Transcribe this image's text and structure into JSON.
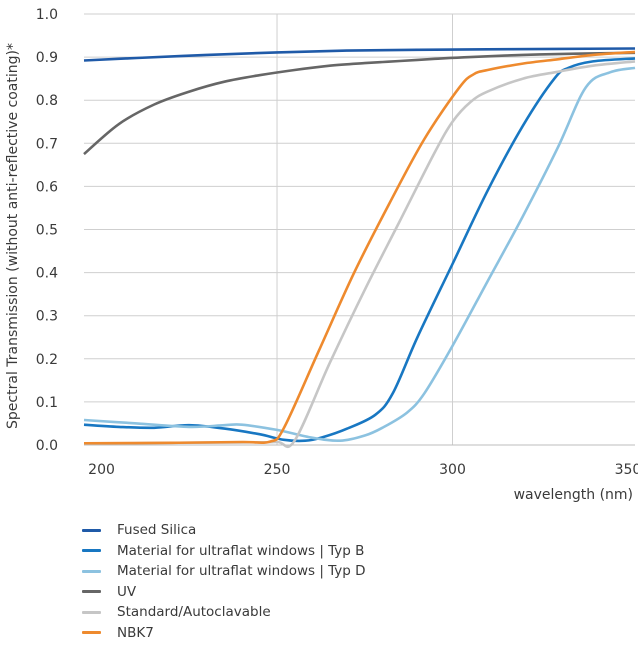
{
  "chart_data": {
    "type": "line",
    "ylabel": "Spectral Transmission (without anti-reflective coating)*",
    "xlabel": "wavelength (nm)",
    "xlim": [
      195,
      352
    ],
    "ylim": [
      0,
      1.0
    ],
    "xticks": [
      200,
      250,
      300,
      350
    ],
    "yticks": [
      0.0,
      0.1,
      0.2,
      0.3,
      0.4,
      0.5,
      0.6,
      0.7,
      0.8,
      0.9,
      1.0
    ],
    "ytick_labels": [
      "0.0",
      "0.1",
      "0.2",
      "0.3",
      "0.4",
      "0.5",
      "0.6",
      "0.7",
      "0.8",
      "0.9",
      "1.0"
    ],
    "grid": "vertical lines at 250 and 300, horizontal lines at each y tick",
    "legend_position": "bottom",
    "series": [
      {
        "name": "Fused Silica",
        "color": "#1f5aa8",
        "x": [
          195,
          210,
          230,
          250,
          270,
          290,
          310,
          330,
          352
        ],
        "y": [
          0.892,
          0.898,
          0.905,
          0.911,
          0.915,
          0.917,
          0.918,
          0.919,
          0.92
        ]
      },
      {
        "name": "Material for ultraflat windows | Typ B",
        "color": "#1877c2",
        "x": [
          195,
          205,
          215,
          225,
          235,
          245,
          252,
          258,
          263,
          270,
          278,
          283,
          290,
          300,
          310,
          320,
          329,
          333,
          340,
          352
        ],
        "y": [
          0.047,
          0.042,
          0.04,
          0.046,
          0.038,
          0.025,
          0.012,
          0.01,
          0.018,
          0.038,
          0.07,
          0.12,
          0.25,
          0.42,
          0.59,
          0.74,
          0.85,
          0.875,
          0.89,
          0.897
        ]
      },
      {
        "name": "Material for ultraflat windows | Typ D",
        "color": "#8cc2e0",
        "x": [
          195,
          210,
          225,
          235,
          240,
          250,
          260,
          268,
          275,
          280,
          287,
          292,
          300,
          310,
          320,
          330,
          338,
          345,
          352
        ],
        "y": [
          0.058,
          0.05,
          0.042,
          0.046,
          0.047,
          0.035,
          0.017,
          0.01,
          0.022,
          0.04,
          0.075,
          0.12,
          0.23,
          0.38,
          0.53,
          0.69,
          0.83,
          0.865,
          0.875
        ]
      },
      {
        "name": "UV",
        "color": "#666666",
        "x": [
          195,
          205,
          215,
          225,
          235,
          245,
          255,
          265,
          275,
          285,
          295,
          305,
          320,
          335,
          352
        ],
        "y": [
          0.675,
          0.745,
          0.79,
          0.82,
          0.843,
          0.858,
          0.87,
          0.88,
          0.886,
          0.891,
          0.896,
          0.9,
          0.905,
          0.908,
          0.91
        ]
      },
      {
        "name": "Standard/Autoclavable",
        "color": "#c6c6c6",
        "x": [
          195,
          220,
          240,
          250,
          255,
          265,
          275,
          285,
          295,
          300,
          305,
          310,
          320,
          330,
          340,
          352
        ],
        "y": [
          0.003,
          0.005,
          0.006,
          0.007,
          0.01,
          0.19,
          0.36,
          0.52,
          0.68,
          0.75,
          0.795,
          0.82,
          0.85,
          0.866,
          0.88,
          0.89
        ]
      },
      {
        "name": "NBK7",
        "color": "#ee8a2e",
        "x": [
          195,
          220,
          240,
          248,
          252,
          262,
          272,
          282,
          292,
          302,
          306,
          310,
          320,
          330,
          340,
          352
        ],
        "y": [
          0.004,
          0.005,
          0.007,
          0.008,
          0.04,
          0.22,
          0.4,
          0.56,
          0.71,
          0.83,
          0.86,
          0.87,
          0.885,
          0.895,
          0.905,
          0.912
        ]
      }
    ]
  }
}
